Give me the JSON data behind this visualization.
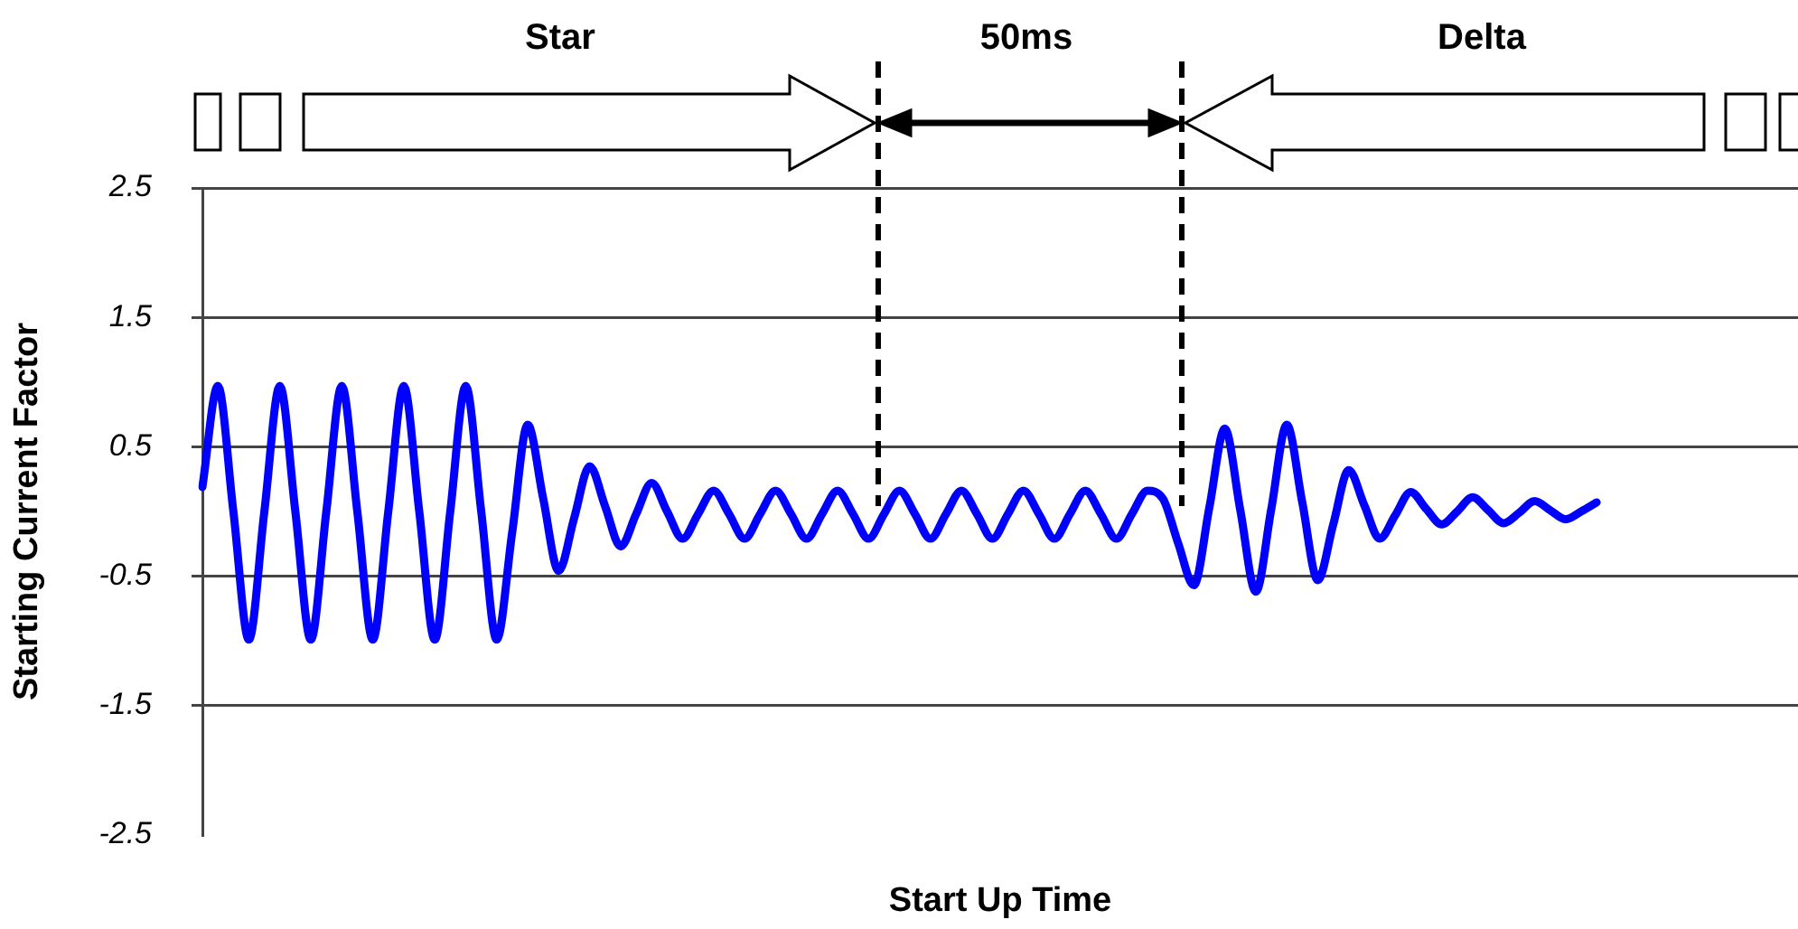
{
  "chart_data": {
    "type": "line",
    "xlabel": "Start Up Time",
    "ylabel": "Starting Current Factor",
    "annotations": [
      "Star",
      "50ms",
      "Delta"
    ],
    "categories": [
      null,
      null,
      null,
      null,
      null,
      null,
      null,
      null,
      null,
      null,
      null,
      null,
      null,
      null,
      null,
      null,
      null,
      null,
      null,
      null,
      null,
      null,
      null,
      null,
      null,
      null,
      null,
      null,
      null,
      null,
      null,
      null,
      null,
      null,
      null,
      null,
      null,
      null,
      null,
      null,
      null,
      null,
      null,
      null,
      null,
      null,
      null,
      null,
      null,
      null,
      null,
      null,
      null,
      null,
      null,
      null,
      null,
      null,
      null,
      null,
      null,
      null,
      null,
      null,
      null,
      null,
      null,
      null,
      null,
      null,
      null,
      null,
      null,
      null,
      null,
      null,
      null,
      null,
      null,
      null,
      null,
      null,
      null,
      null,
      null,
      null,
      null,
      null,
      null,
      null,
      null,
      null,
      null,
      null,
      null,
      null,
      null,
      null,
      null,
      null,
      null,
      null,
      null,
      null
    ],
    "series": [
      {
        "color": "#0000ff",
        "values": [
          0.19,
          0.97,
          0,
          -0.99,
          0,
          0.97,
          0,
          -0.99,
          0,
          0.97,
          0,
          -0.99,
          0,
          0.97,
          0,
          -0.99,
          0,
          0.97,
          0,
          -0.99,
          -0.16,
          0.67,
          0.1,
          -0.46,
          -0.05,
          0.35,
          0.04,
          -0.27,
          -0.02,
          0.22,
          0,
          -0.21,
          -0.02,
          0.16,
          -0.02,
          -0.21,
          -0.02,
          0.16,
          -0.02,
          -0.21,
          -0.02,
          0.16,
          -0.02,
          -0.21,
          -0.02,
          0.16,
          -0.02,
          -0.21,
          -0.02,
          0.16,
          -0.02,
          -0.21,
          -0.02,
          0.16,
          -0.02,
          -0.21,
          -0.02,
          0.16,
          -0.02,
          -0.21,
          -0.02,
          0.16,
          0.1,
          -0.25,
          -0.57,
          0.03,
          0.64,
          0.01,
          -0.62,
          0.02,
          0.67,
          0.07,
          -0.53,
          -0.1,
          0.32,
          0.05,
          -0.21,
          -0.03,
          0.15,
          0.02,
          -0.1,
          0,
          0.11,
          0.01,
          -0.09,
          -0.01,
          0.08,
          0.01,
          -0.06,
          0,
          0.07,
          null,
          null,
          null,
          null,
          null,
          null,
          null,
          null,
          null,
          null,
          null,
          null,
          null
        ]
      }
    ],
    "ylim": [
      -2.5,
      2.5
    ],
    "yticks": [
      2.5,
      1.5,
      0.5,
      -0.5,
      -1.5,
      -2.5
    ],
    "grid": "y",
    "tick_labels": "y",
    "legend": false,
    "marker": "none",
    "line_style": "solid"
  }
}
